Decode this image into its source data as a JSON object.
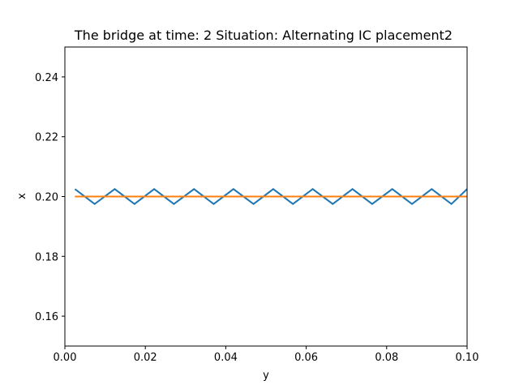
{
  "chart_data": {
    "type": "line",
    "title": "The bridge at time: 2 Situation: Alternating IC placement2",
    "xlabel": "y",
    "ylabel": "x",
    "xlim": [
      0.0,
      0.1
    ],
    "ylim": [
      0.15,
      0.25
    ],
    "xticks": [
      "0.00",
      "0.02",
      "0.04",
      "0.06",
      "0.08",
      "0.10"
    ],
    "xtick_values": [
      0.0,
      0.02,
      0.04,
      0.06,
      0.08,
      0.1
    ],
    "yticks": [
      "0.16",
      "0.18",
      "0.20",
      "0.22",
      "0.24"
    ],
    "ytick_values": [
      0.16,
      0.18,
      0.2,
      0.22,
      0.24
    ],
    "grid": false,
    "series": [
      {
        "color": "#1f77b4",
        "x": [
          0.0025,
          0.0074,
          0.0124,
          0.0173,
          0.0222,
          0.0271,
          0.0321,
          0.037,
          0.0419,
          0.0469,
          0.0518,
          0.0567,
          0.0616,
          0.0666,
          0.0715,
          0.0764,
          0.0814,
          0.0863,
          0.0912,
          0.0961,
          0.1
        ],
        "values": [
          0.2025,
          0.1975,
          0.2025,
          0.1975,
          0.2025,
          0.1975,
          0.2025,
          0.1975,
          0.2025,
          0.1975,
          0.2025,
          0.1975,
          0.2025,
          0.1975,
          0.2025,
          0.1975,
          0.2025,
          0.1975,
          0.2025,
          0.1975,
          0.2025
        ]
      },
      {
        "color": "#ff7f0e",
        "x": [
          0.0025,
          0.1
        ],
        "values": [
          0.2,
          0.2
        ]
      }
    ]
  }
}
